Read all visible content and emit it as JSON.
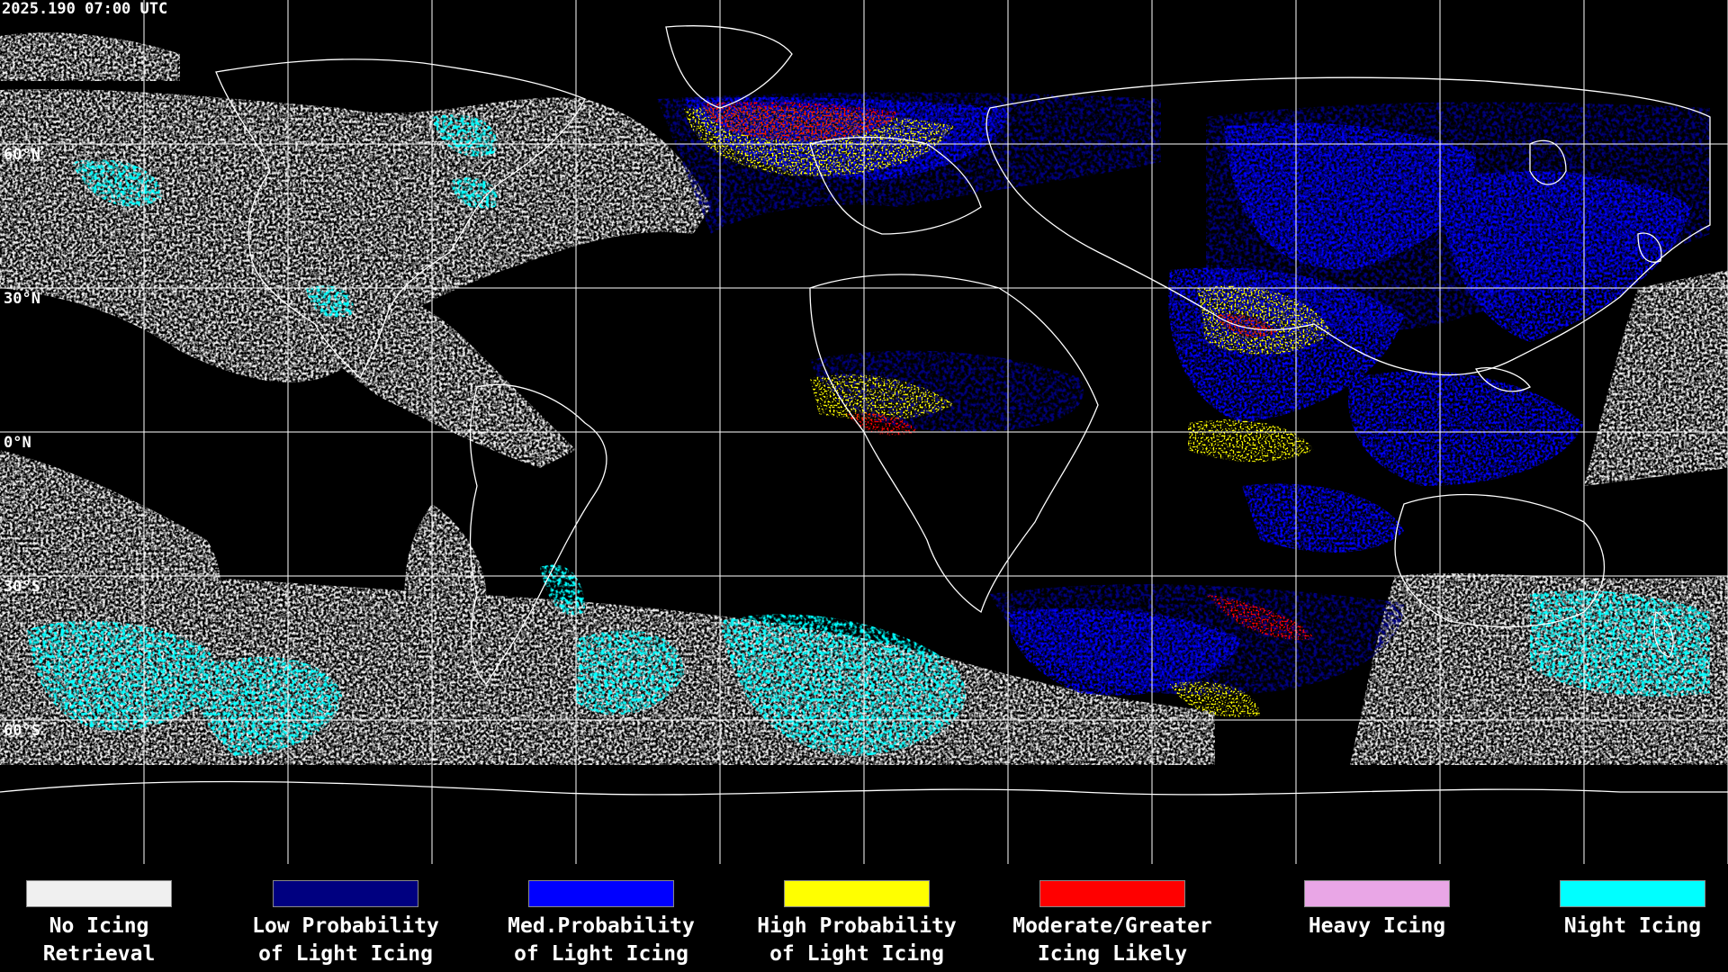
{
  "header": {
    "timestamp": "2025.190 07:00 UTC"
  },
  "map": {
    "lat_labels": [
      "60°N",
      "30°N",
      "0°N",
      "30°S",
      "60°S"
    ],
    "colors": {
      "background": "#000000",
      "grid": "#ffffff",
      "coast": "#ffffff",
      "no_icing": "#f0f0f0",
      "night_icing": "#00ffff",
      "low_prob": "#000080",
      "med_prob": "#0000ff",
      "high_prob": "#ffff00",
      "moderate": "#ff0000"
    }
  },
  "legend": {
    "items": [
      {
        "label": "No Icing\nRetrieval",
        "color": "#f0f0f0",
        "icon": "white-swatch"
      },
      {
        "label": "Low Probability\nof Light Icing",
        "color": "#000080",
        "icon": "navy-swatch"
      },
      {
        "label": "Med.Probability\nof Light Icing",
        "color": "#0000ff",
        "icon": "blue-swatch"
      },
      {
        "label": "High Probability\nof Light Icing",
        "color": "#ffff00",
        "icon": "yellow-swatch"
      },
      {
        "label": "Moderate/Greater\nIcing Likely",
        "color": "#ff0000",
        "icon": "red-swatch"
      },
      {
        "label": "Heavy Icing",
        "color": "#e9a6e6",
        "icon": "pink-swatch"
      },
      {
        "label": "Night Icing",
        "color": "#00ffff",
        "icon": "cyan-swatch"
      }
    ]
  }
}
